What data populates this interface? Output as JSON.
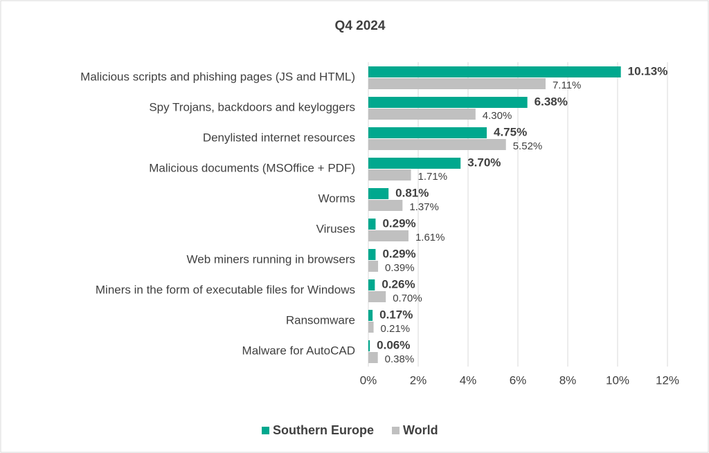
{
  "chart_data": {
    "type": "bar",
    "orientation": "horizontal",
    "title": "Q4 2024",
    "categories": [
      "Malicious scripts and phishing pages (JS and HTML)",
      "Spy Trojans, backdoors and keyloggers",
      "Denylisted internet resources",
      "Malicious documents (MSOffice + PDF)",
      "Worms",
      "Viruses",
      "Web miners running in browsers",
      "Miners in the form of executable files for Windows",
      "Ransomware",
      "Malware for AutoCAD"
    ],
    "series": [
      {
        "name": "Southern Europe",
        "color": "#00a88e",
        "values": [
          10.13,
          6.38,
          4.75,
          3.7,
          0.81,
          0.29,
          0.29,
          0.26,
          0.17,
          0.06
        ],
        "value_labels": [
          "10.13%",
          "6.38%",
          "4.75%",
          "3.70%",
          "0.81%",
          "0.29%",
          "0.29%",
          "0.26%",
          "0.17%",
          "0.06%"
        ]
      },
      {
        "name": "World",
        "color": "#c0c0c0",
        "values": [
          7.11,
          4.3,
          5.52,
          1.71,
          1.37,
          1.61,
          0.39,
          0.7,
          0.21,
          0.38
        ],
        "value_labels": [
          "7.11%",
          "4.30%",
          "5.52%",
          "1.71%",
          "1.37%",
          "1.61%",
          "0.39%",
          "0.70%",
          "0.21%",
          "0.38%"
        ]
      }
    ],
    "xlim": [
      0,
      12
    ],
    "xticks": [
      {
        "value": 0,
        "label": "0%"
      },
      {
        "value": 2,
        "label": "2%"
      },
      {
        "value": 4,
        "label": "4%"
      },
      {
        "value": 6,
        "label": "6%"
      },
      {
        "value": 8,
        "label": "8%"
      },
      {
        "value": 10,
        "label": "10%"
      },
      {
        "value": 12,
        "label": "12%"
      }
    ],
    "grid": true,
    "legend": "bottom"
  }
}
